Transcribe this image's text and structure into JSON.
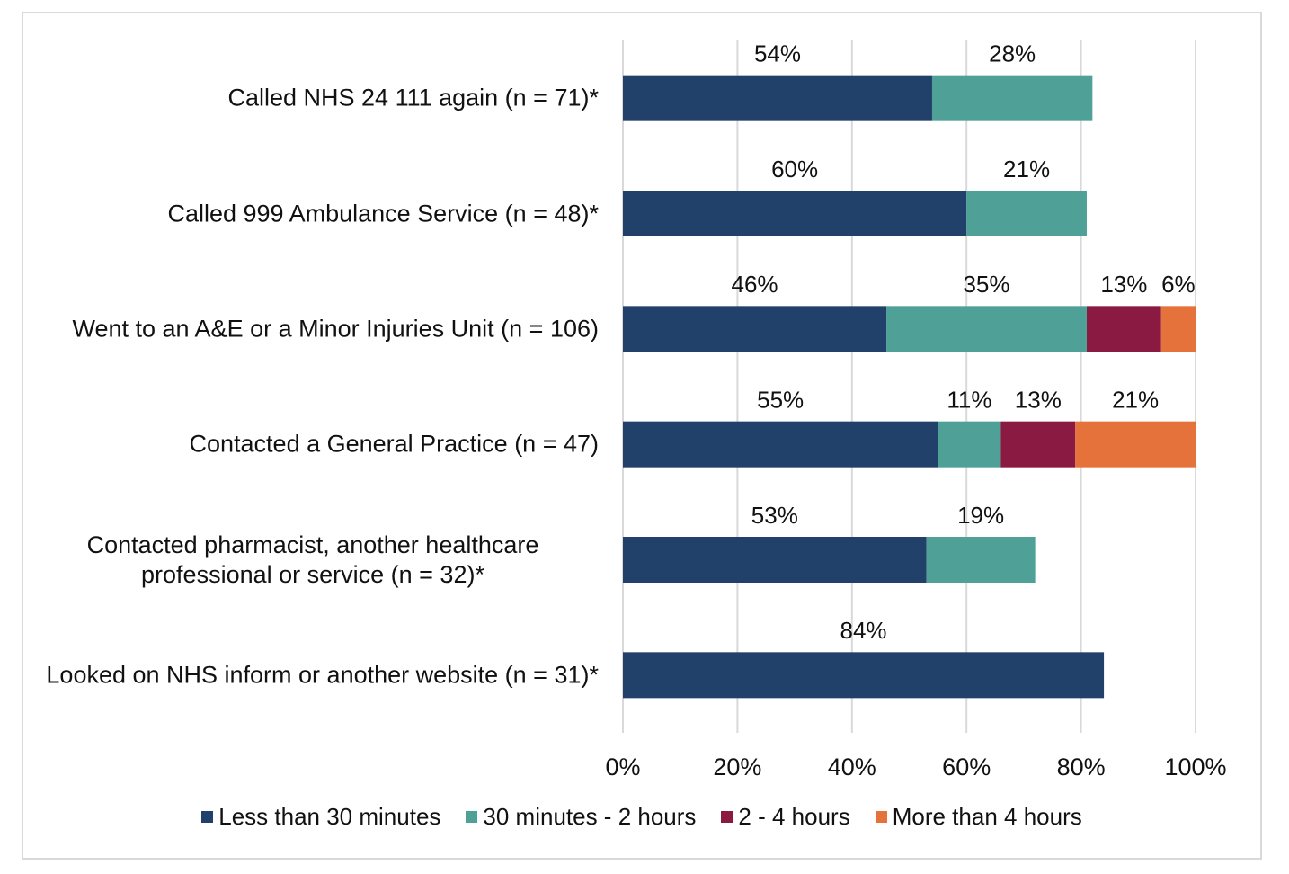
{
  "chart_data": {
    "type": "stacked-bar-horizontal",
    "categories": [
      "Called NHS 24 111 again (n = 71)*",
      "Called 999 Ambulance Service (n = 48)*",
      "Went to an A&E or a Minor Injuries Unit (n = 106)",
      "Contacted a General Practice (n = 47)",
      "Contacted pharmacist, another healthcare professional or service (n = 32)*",
      "Looked on NHS inform or another website (n = 31)*"
    ],
    "series": [
      {
        "name": "Less than 30 minutes",
        "color": "#22416a",
        "values": [
          54,
          60,
          46,
          55,
          53,
          84
        ],
        "value_labels": [
          "54%",
          "60%",
          "46%",
          "55%",
          "53%",
          "84%"
        ]
      },
      {
        "name": "30 minutes - 2 hours",
        "color": "#4fa197",
        "values": [
          28,
          21,
          35,
          11,
          19,
          null
        ],
        "value_labels": [
          "28%",
          "21%",
          "35%",
          "11%",
          "19%",
          null
        ]
      },
      {
        "name": "2 - 4 hours",
        "color": "#8b1a42",
        "values": [
          null,
          null,
          13,
          13,
          null,
          null
        ],
        "value_labels": [
          null,
          null,
          "13%",
          "13%",
          null,
          null
        ]
      },
      {
        "name": "More than 4 hours",
        "color": "#e4723a",
        "values": [
          null,
          null,
          6,
          21,
          null,
          null
        ],
        "value_labels": [
          null,
          null,
          "6%",
          "21%",
          null,
          null
        ]
      }
    ],
    "xlim": [
      0,
      100
    ],
    "xticks": [
      {
        "value": 0,
        "label": "0%"
      },
      {
        "value": 20,
        "label": "20%"
      },
      {
        "value": 40,
        "label": "40%"
      },
      {
        "value": 60,
        "label": "60%"
      },
      {
        "value": 80,
        "label": "80%"
      },
      {
        "value": 100,
        "label": "100%"
      }
    ],
    "grid": true
  }
}
